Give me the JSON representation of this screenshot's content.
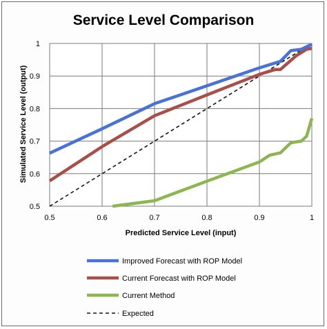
{
  "chart_data": {
    "type": "line",
    "title": "Service Level Comparison",
    "xlabel": "Predicted Service Level (input)",
    "ylabel": "Simulated Service Level (output)",
    "xlim": [
      0.5,
      1.0
    ],
    "ylim": [
      0.5,
      1.0
    ],
    "x_ticks": [
      "0.5",
      "0.6",
      "0.7",
      "0.8",
      "0.9",
      "1"
    ],
    "y_ticks": [
      "0.5",
      "0.6",
      "0.7",
      "0.8",
      "0.9",
      "1"
    ],
    "grid": true,
    "legend_position": "bottom",
    "series": [
      {
        "name": "Improved Forecast with ROP Model",
        "color": "#4a72d6",
        "dash": false,
        "points": [
          [
            0.5,
            0.663
          ],
          [
            0.6,
            0.738
          ],
          [
            0.7,
            0.815
          ],
          [
            0.8,
            0.87
          ],
          [
            0.9,
            0.925
          ],
          [
            0.94,
            0.945
          ],
          [
            0.96,
            0.978
          ],
          [
            0.98,
            0.982
          ],
          [
            0.99,
            0.99
          ],
          [
            1.0,
            0.997
          ]
        ]
      },
      {
        "name": "Current Forecast with ROP Model",
        "color": "#a84f4a",
        "dash": false,
        "points": [
          [
            0.5,
            0.578
          ],
          [
            0.6,
            0.683
          ],
          [
            0.7,
            0.778
          ],
          [
            0.8,
            0.842
          ],
          [
            0.9,
            0.905
          ],
          [
            0.93,
            0.92
          ],
          [
            0.94,
            0.92
          ],
          [
            0.97,
            0.962
          ],
          [
            0.99,
            0.982
          ],
          [
            1.0,
            0.985
          ]
        ]
      },
      {
        "name": "Current Method",
        "color": "#8db652",
        "dash": false,
        "points": [
          [
            0.62,
            0.5
          ],
          [
            0.7,
            0.517
          ],
          [
            0.8,
            0.577
          ],
          [
            0.9,
            0.636
          ],
          [
            0.92,
            0.657
          ],
          [
            0.94,
            0.664
          ],
          [
            0.96,
            0.695
          ],
          [
            0.98,
            0.7
          ],
          [
            0.99,
            0.715
          ],
          [
            1.0,
            0.77
          ]
        ]
      },
      {
        "name": "Expected",
        "color": "#111111",
        "dash": true,
        "points": [
          [
            0.5,
            0.5
          ],
          [
            1.0,
            1.0
          ]
        ]
      }
    ]
  }
}
